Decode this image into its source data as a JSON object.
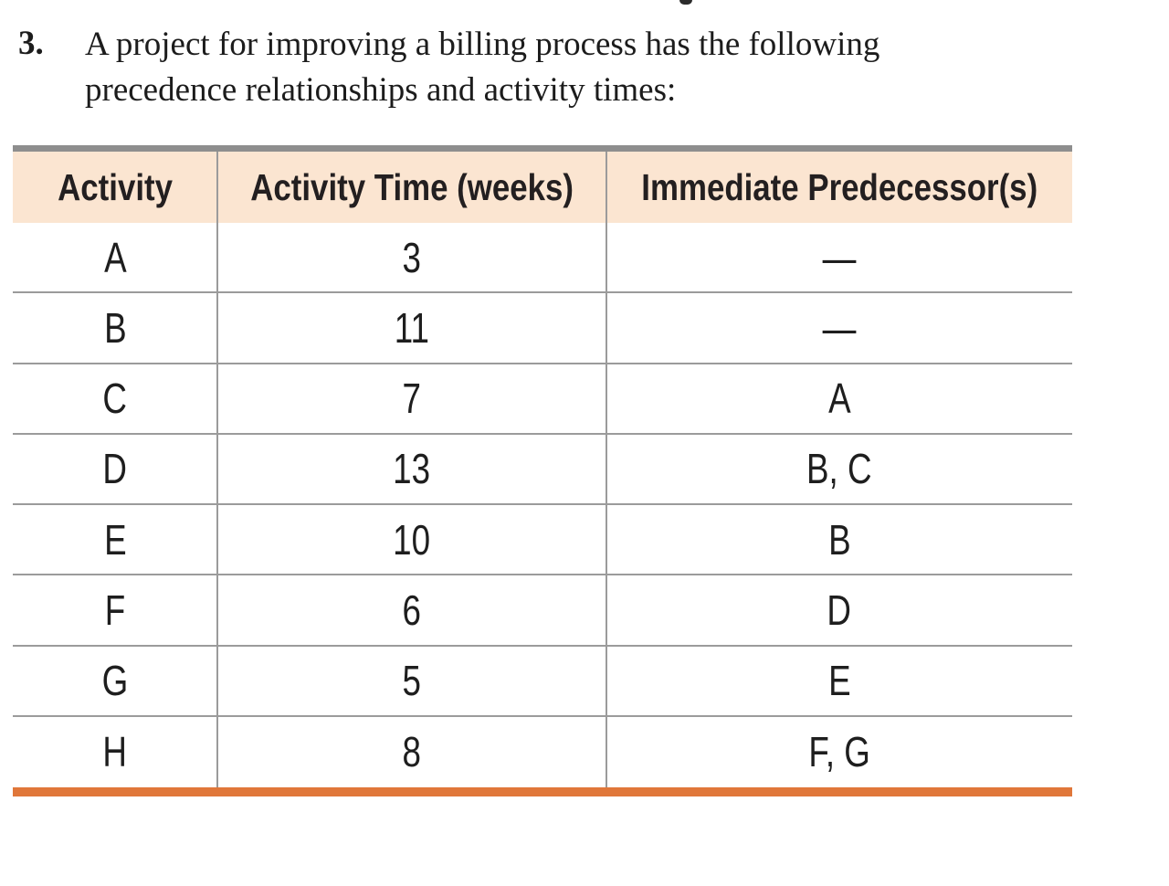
{
  "problem": {
    "number": "3.",
    "lines": [
      "A project for improving a billing process has the following",
      "precedence relationships and activity times:"
    ]
  },
  "table": {
    "headers": [
      "Activity",
      "Activity Time (weeks)",
      "Immediate Predecessor(s)"
    ],
    "rows": [
      {
        "activity": "A",
        "time": "3",
        "predecessors": "—"
      },
      {
        "activity": "B",
        "time": "11",
        "predecessors": "—"
      },
      {
        "activity": "C",
        "time": "7",
        "predecessors": "A"
      },
      {
        "activity": "D",
        "time": "13",
        "predecessors": "B, C"
      },
      {
        "activity": "E",
        "time": "10",
        "predecessors": "B"
      },
      {
        "activity": "F",
        "time": "6",
        "predecessors": "D"
      },
      {
        "activity": "G",
        "time": "5",
        "predecessors": "E"
      },
      {
        "activity": "H",
        "time": "8",
        "predecessors": "F, G"
      }
    ],
    "colors": {
      "header_bg": "#fbe5d1",
      "top_bar": "#8e8e8e",
      "grid_line": "#9b9b9b",
      "bottom_bar": "#e0773a",
      "text": "#1e1e1e"
    }
  }
}
